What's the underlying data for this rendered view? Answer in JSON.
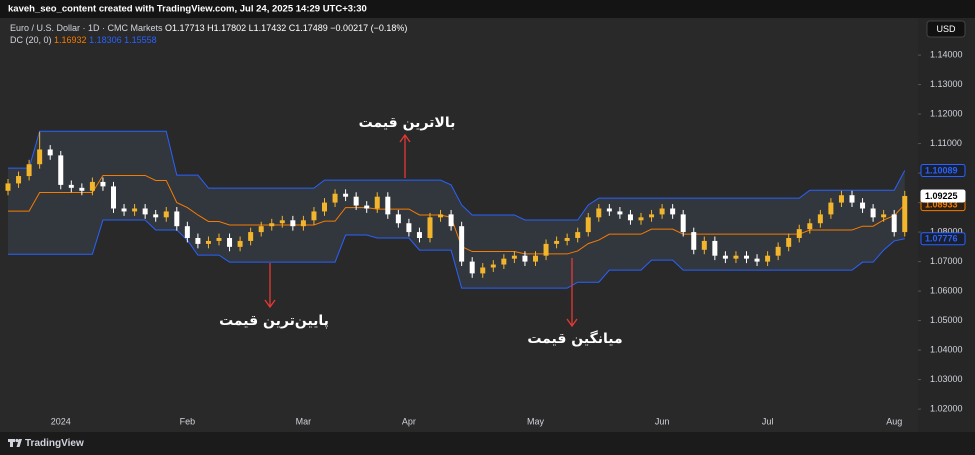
{
  "header": {
    "watermark": "kaveh_seo_content created with TradingView.com, Jul 24, 2025 14:29 UTC+3:30",
    "symbol": "Euro / U.S. Dollar · 1D · CMC Markets",
    "ohlc": [
      "O1.17713",
      "H1.17802",
      "L1.17432",
      "C1.17489",
      "−0.00217 (−0.18%)"
    ],
    "indicator": "DC (20, 0)",
    "indicator_values": [
      "1.16932",
      "1.18306",
      "1.15558"
    ],
    "currency": "USD",
    "footer": "TradingView"
  },
  "chart_data": {
    "type": "candlestick",
    "categories": [
      null,
      null,
      null,
      null,
      null,
      "2024",
      null,
      null,
      null,
      null,
      null,
      null,
      null,
      null,
      null,
      null,
      null,
      "Feb",
      null,
      null,
      null,
      null,
      null,
      null,
      null,
      null,
      null,
      null,
      "Mar",
      null,
      null,
      null,
      null,
      null,
      null,
      null,
      null,
      null,
      "Apr",
      null,
      null,
      null,
      null,
      null,
      null,
      null,
      null,
      null,
      null,
      null,
      "May",
      null,
      null,
      null,
      null,
      null,
      null,
      null,
      null,
      null,
      null,
      null,
      "Jun",
      null,
      null,
      null,
      null,
      null,
      null,
      null,
      null,
      null,
      "Jul",
      null,
      null,
      null,
      null,
      null,
      null,
      null,
      null,
      null,
      null,
      null,
      "Aug",
      null
    ],
    "open": [
      1.094,
      1.0965,
      1.099,
      1.103,
      1.108,
      1.106,
      1.096,
      1.095,
      1.094,
      1.097,
      1.0955,
      1.088,
      1.087,
      1.088,
      1.086,
      1.085,
      1.087,
      1.082,
      1.078,
      1.076,
      1.077,
      1.078,
      1.075,
      1.077,
      1.08,
      1.082,
      1.083,
      1.084,
      1.082,
      1.084,
      1.087,
      1.09,
      1.093,
      1.092,
      1.089,
      1.088,
      1.092,
      1.086,
      1.083,
      1.08,
      1.078,
      1.085,
      1.086,
      1.082,
      1.07,
      1.066,
      1.068,
      1.069,
      1.071,
      1.072,
      1.07,
      1.072,
      1.076,
      1.077,
      1.078,
      1.08,
      1.085,
      1.088,
      1.087,
      1.086,
      1.084,
      1.085,
      1.086,
      1.088,
      1.086,
      1.08,
      1.074,
      1.077,
      1.072,
      1.071,
      1.072,
      1.071,
      1.07,
      1.072,
      1.075,
      1.078,
      1.081,
      1.083,
      1.086,
      1.09,
      1.0925,
      1.09,
      1.088,
      1.085,
      1.086,
      1.08
    ],
    "high": [
      1.098,
      1.1005,
      1.1045,
      1.114,
      1.1095,
      1.1075,
      1.0975,
      1.0965,
      1.0985,
      1.0985,
      1.097,
      1.0895,
      1.0895,
      1.0895,
      1.0875,
      1.0885,
      1.0885,
      1.0835,
      1.0795,
      1.0785,
      1.0795,
      1.0795,
      1.0785,
      1.0815,
      1.0835,
      1.0845,
      1.0855,
      1.0855,
      1.0855,
      1.0885,
      1.0915,
      1.0945,
      1.0945,
      1.0935,
      1.0905,
      1.0935,
      1.0935,
      1.0875,
      1.0845,
      1.0815,
      1.0865,
      1.0875,
      1.0875,
      1.0835,
      1.0715,
      1.0695,
      1.0705,
      1.0725,
      1.0735,
      1.0735,
      1.0735,
      1.0775,
      1.0785,
      1.0795,
      1.0815,
      1.0865,
      1.0895,
      1.0895,
      1.0885,
      1.0875,
      1.0865,
      1.0875,
      1.0895,
      1.0895,
      1.0875,
      1.0815,
      1.0785,
      1.0785,
      1.0735,
      1.0735,
      1.0735,
      1.0725,
      1.0735,
      1.0765,
      1.0795,
      1.0825,
      1.0845,
      1.0875,
      1.0915,
      1.094,
      1.094,
      1.0915,
      1.0895,
      1.0875,
      1.0875,
      1.094
    ],
    "low": [
      1.0925,
      1.095,
      1.0975,
      1.1015,
      1.1045,
      1.0945,
      1.0935,
      1.0925,
      1.0925,
      1.094,
      1.0865,
      1.0855,
      1.0855,
      1.0845,
      1.0835,
      1.0835,
      1.0805,
      1.0765,
      1.0745,
      1.0745,
      1.0755,
      1.0735,
      1.0735,
      1.0755,
      1.0785,
      1.0805,
      1.0815,
      1.0805,
      1.0805,
      1.0825,
      1.0855,
      1.0885,
      1.0905,
      1.0875,
      1.0865,
      1.0865,
      1.0845,
      1.0815,
      1.0785,
      1.0765,
      1.0765,
      1.0835,
      1.0805,
      1.0685,
      1.0645,
      1.0645,
      1.0665,
      1.0675,
      1.0695,
      1.0685,
      1.0685,
      1.0705,
      1.0745,
      1.0755,
      1.0765,
      1.0785,
      1.0835,
      1.0855,
      1.0845,
      1.0825,
      1.0825,
      1.0835,
      1.0845,
      1.0845,
      1.0785,
      1.0725,
      1.0725,
      1.0705,
      1.0695,
      1.0695,
      1.0695,
      1.0685,
      1.0685,
      1.0705,
      1.0735,
      1.0765,
      1.0795,
      1.0815,
      1.0845,
      1.0885,
      1.0885,
      1.0865,
      1.0835,
      1.0835,
      1.0785,
      1.0785
    ],
    "close": [
      1.0965,
      1.099,
      1.103,
      1.108,
      1.106,
      1.096,
      1.095,
      1.094,
      1.097,
      1.0955,
      1.088,
      1.087,
      1.088,
      1.086,
      1.085,
      1.087,
      1.082,
      1.078,
      1.076,
      1.077,
      1.078,
      1.075,
      1.077,
      1.08,
      1.082,
      1.083,
      1.084,
      1.082,
      1.084,
      1.087,
      1.09,
      1.093,
      1.092,
      1.089,
      1.088,
      1.092,
      1.086,
      1.083,
      1.08,
      1.078,
      1.085,
      1.086,
      1.082,
      1.07,
      1.066,
      1.068,
      1.069,
      1.071,
      1.072,
      1.07,
      1.072,
      1.076,
      1.077,
      1.078,
      1.08,
      1.085,
      1.088,
      1.087,
      1.086,
      1.084,
      1.085,
      1.086,
      1.088,
      1.086,
      1.08,
      1.074,
      1.077,
      1.072,
      1.071,
      1.072,
      1.071,
      1.07,
      1.072,
      1.075,
      1.078,
      1.081,
      1.083,
      1.086,
      1.09,
      1.0925,
      1.09,
      1.088,
      1.085,
      1.086,
      1.08,
      1.09225
    ],
    "up_color": "#f2b52c",
    "down_color": "#ffffff",
    "channel": {
      "name": "DC (20, 0)",
      "upper": {
        "color": "#2962ff",
        "values": [
          1.1017,
          1.1017,
          1.1017,
          1.1142,
          1.1142,
          1.1142,
          1.1142,
          1.1142,
          1.1142,
          1.1142,
          1.1142,
          1.1142,
          1.1142,
          1.1142,
          1.1142,
          1.1142,
          1.0993,
          1.0993,
          1.0993,
          1.0949,
          1.0949,
          1.0949,
          1.0949,
          1.0949,
          1.0949,
          1.0949,
          1.0949,
          1.0949,
          1.0949,
          1.0949,
          1.0976,
          1.0976,
          1.0976,
          1.0976,
          1.0976,
          1.0976,
          1.0976,
          1.0976,
          1.0976,
          1.0976,
          1.0976,
          1.0976,
          1.096,
          1.0892,
          1.0858,
          1.0858,
          1.0858,
          1.0858,
          1.0858,
          1.0841,
          1.0841,
          1.0841,
          1.0841,
          1.0841,
          1.0841,
          1.0892,
          1.0915,
          1.0915,
          1.0915,
          1.0915,
          1.0915,
          1.0915,
          1.0915,
          1.0915,
          1.0915,
          1.0915,
          1.0915,
          1.0915,
          1.0915,
          1.0915,
          1.0915,
          1.0915,
          1.0915,
          1.0915,
          1.0915,
          1.0915,
          1.0942,
          1.0942,
          1.0942,
          1.0942,
          1.0942,
          1.0942,
          1.0942,
          1.0942,
          1.0942,
          1.10089
        ]
      },
      "middle": {
        "color": "#f57c00",
        "values": [
          1.0871,
          1.0871,
          1.0871,
          1.0934,
          1.0934,
          1.0934,
          1.0934,
          1.0934,
          1.0934,
          1.0992,
          1.0992,
          1.0992,
          1.0992,
          1.0992,
          1.0975,
          1.0975,
          1.09,
          1.0883,
          1.0858,
          1.0836,
          1.0836,
          1.0824,
          1.0824,
          1.0824,
          1.0824,
          1.0824,
          1.0824,
          1.0824,
          1.0824,
          1.0824,
          1.0837,
          1.0837,
          1.0883,
          1.0883,
          1.0883,
          1.0878,
          1.0878,
          1.0878,
          1.0878,
          1.0858,
          1.0858,
          1.0858,
          1.085,
          1.0751,
          1.0734,
          1.0734,
          1.0734,
          1.0734,
          1.0734,
          1.0726,
          1.0726,
          1.0726,
          1.0726,
          1.0726,
          1.0736,
          1.0761,
          1.0773,
          1.0793,
          1.0793,
          1.0793,
          1.0793,
          1.081,
          1.081,
          1.081,
          1.0793,
          1.0793,
          1.0793,
          1.0793,
          1.0793,
          1.0793,
          1.0793,
          1.0793,
          1.0793,
          1.0793,
          1.0793,
          1.0793,
          1.0807,
          1.0807,
          1.0807,
          1.0807,
          1.0807,
          1.082,
          1.082,
          1.0841,
          1.0856,
          1.08933
        ]
      },
      "lower": {
        "color": "#2962ff",
        "values": [
          1.0725,
          1.0725,
          1.0725,
          1.0725,
          1.0725,
          1.0725,
          1.0725,
          1.0725,
          1.0725,
          1.0841,
          1.0841,
          1.0841,
          1.0841,
          1.0841,
          1.0807,
          1.0807,
          1.0807,
          1.0773,
          1.0722,
          1.0722,
          1.0722,
          1.0698,
          1.0698,
          1.0698,
          1.0698,
          1.0698,
          1.0698,
          1.0698,
          1.0698,
          1.0698,
          1.0698,
          1.0698,
          1.079,
          1.079,
          1.079,
          1.078,
          1.078,
          1.078,
          1.078,
          1.0739,
          1.0739,
          1.0739,
          1.0739,
          1.061,
          1.061,
          1.061,
          1.061,
          1.061,
          1.061,
          1.061,
          1.061,
          1.061,
          1.061,
          1.061,
          1.063,
          1.063,
          1.063,
          1.0671,
          1.0671,
          1.0671,
          1.0671,
          1.0705,
          1.0705,
          1.0705,
          1.0671,
          1.0671,
          1.0671,
          1.0671,
          1.0671,
          1.0671,
          1.0671,
          1.0671,
          1.0671,
          1.0671,
          1.0671,
          1.0671,
          1.0671,
          1.0671,
          1.0671,
          1.0671,
          1.0671,
          1.0698,
          1.0698,
          1.0739,
          1.077,
          1.07776
        ]
      }
    },
    "ylim": [
      1.018,
      1.1485
    ],
    "yticks": [
      {
        "value": 1.14,
        "label": "1.14000"
      },
      {
        "value": 1.13,
        "label": "1.13000"
      },
      {
        "value": 1.12,
        "label": "1.12000"
      },
      {
        "value": 1.11,
        "label": "1.11000"
      },
      {
        "value": 1.1,
        "label": "1.10000"
      },
      {
        "value": 1.09,
        "label": "1.09000"
      },
      {
        "value": 1.08,
        "label": "1.08000"
      },
      {
        "value": 1.07,
        "label": "1.07000"
      },
      {
        "value": 1.06,
        "label": "1.06000"
      },
      {
        "value": 1.05,
        "label": "1.05000"
      },
      {
        "value": 1.04,
        "label": "1.04000"
      },
      {
        "value": 1.03,
        "label": "1.03000"
      },
      {
        "value": 1.02,
        "label": "1.02000"
      }
    ],
    "grid": false,
    "annotations": [
      "بالاترین قیمت",
      "پایین‌ترین قیمت",
      "میانگین قیمت"
    ]
  }
}
